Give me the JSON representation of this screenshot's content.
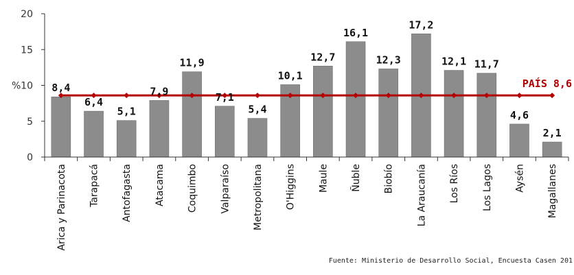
{
  "chart_data": {
    "type": "bar",
    "ylabel": "%",
    "ylim": [
      0,
      20
    ],
    "yticks": [
      "0",
      "5",
      "10",
      "15",
      "20"
    ],
    "categories": [
      "Arica y Parinacota",
      "Tarapacá",
      "Antofagasta",
      "Atacama",
      "Coquimbo",
      "Valparaíso",
      "Metropolitana",
      "O'Higgins",
      "Maule",
      "Ñuble",
      "Biobío",
      "La Araucanía",
      "Los Ríos",
      "Los Lagos",
      "Aysén",
      "Magallanes"
    ],
    "values": [
      8.4,
      6.4,
      5.1,
      7.9,
      11.9,
      7.1,
      5.4,
      10.1,
      12.7,
      16.1,
      12.3,
      17.2,
      12.1,
      11.7,
      4.6,
      2.1
    ],
    "data_labels": [
      "8,4",
      "6,4",
      "5,1",
      "7,9",
      "11,9",
      "7,1",
      "5,4",
      "10,1",
      "12,7",
      "16,1",
      "12,3",
      "17,2",
      "12,1",
      "11,7",
      "4,6",
      "2,1"
    ],
    "reference_line": {
      "value": 8.6,
      "label": "PAÍS 8,6"
    },
    "grid": false,
    "source": "Fuente: Ministerio de Desarrollo Social, Encuesta Casen 201",
    "colors": {
      "bar": "#8c8c8c",
      "bar_edge": "#6f6f6f",
      "reference_line": "#b30000",
      "axis": "#333333"
    }
  }
}
